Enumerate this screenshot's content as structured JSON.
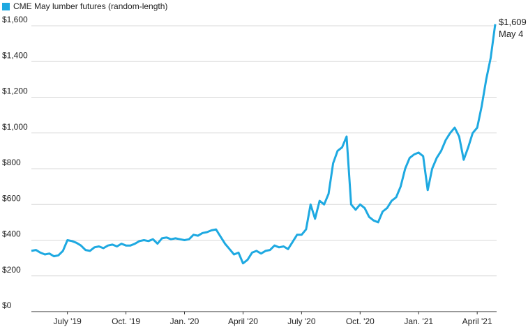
{
  "chart_data": {
    "type": "line",
    "legend_title": "CME May lumber futures (random-length)",
    "end_label": "$1,609",
    "end_date": "May 4",
    "categories": [
      null,
      null,
      null,
      null,
      null,
      null,
      null,
      null,
      "July '19",
      null,
      null,
      null,
      null,
      null,
      null,
      null,
      null,
      null,
      null,
      null,
      null,
      "Oct. '19",
      null,
      null,
      null,
      null,
      null,
      null,
      null,
      null,
      null,
      null,
      null,
      null,
      "Jan. '20",
      null,
      null,
      null,
      null,
      null,
      null,
      null,
      null,
      null,
      null,
      null,
      null,
      "April '20",
      null,
      null,
      null,
      null,
      null,
      null,
      null,
      null,
      null,
      null,
      null,
      null,
      "July '20",
      null,
      null,
      null,
      null,
      null,
      null,
      null,
      null,
      null,
      null,
      null,
      null,
      "Oct. '20",
      null,
      null,
      null,
      null,
      null,
      null,
      null,
      null,
      null,
      null,
      null,
      null,
      "Jan. '21",
      null,
      null,
      null,
      null,
      null,
      null,
      null,
      null,
      null,
      null,
      null,
      null,
      "April '21",
      null,
      null,
      null,
      null
    ],
    "series": [
      {
        "name": "CME May lumber futures (random-length)",
        "color": "#1ea9e1",
        "values": [
          340,
          345,
          330,
          320,
          325,
          310,
          315,
          340,
          400,
          395,
          385,
          370,
          345,
          340,
          360,
          365,
          355,
          370,
          375,
          365,
          380,
          370,
          370,
          380,
          395,
          400,
          395,
          405,
          380,
          410,
          415,
          405,
          410,
          405,
          400,
          405,
          430,
          425,
          440,
          445,
          455,
          460,
          420,
          380,
          350,
          320,
          330,
          270,
          290,
          330,
          340,
          325,
          340,
          345,
          370,
          360,
          365,
          350,
          390,
          430,
          430,
          460,
          600,
          520,
          620,
          600,
          660,
          830,
          900,
          920,
          980,
          600,
          570,
          600,
          580,
          530,
          510,
          500,
          560,
          580,
          620,
          640,
          700,
          800,
          860,
          880,
          890,
          870,
          680,
          800,
          860,
          900,
          960,
          1000,
          1030,
          980,
          850,
          920,
          1000,
          1030,
          1150,
          1300,
          1420,
          1609
        ]
      }
    ],
    "ylim": [
      0,
      1700
    ],
    "yticks": [
      {
        "value": 0,
        "label": "$0"
      },
      {
        "value": 200,
        "label": "$200"
      },
      {
        "value": 400,
        "label": "$400"
      },
      {
        "value": 600,
        "label": "$600"
      },
      {
        "value": 800,
        "label": "$800"
      },
      {
        "value": 1000,
        "label": "$1,000"
      },
      {
        "value": 1200,
        "label": "$1,200"
      },
      {
        "value": 1400,
        "label": "$1,400"
      },
      {
        "value": 1600,
        "label": "$1,600"
      }
    ],
    "grid": true
  }
}
